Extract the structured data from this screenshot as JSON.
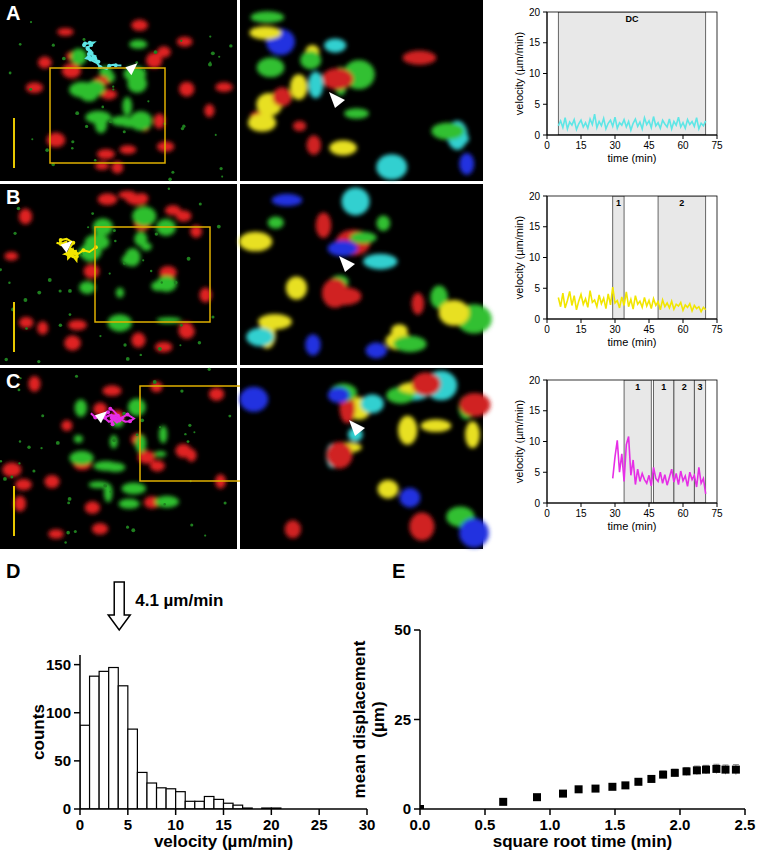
{
  "chart_data": [
    {
      "type": "line",
      "panel_label": "A",
      "xlabel": "time (min)",
      "ylabel": "velocity (µm/min)",
      "xlim": [
        0,
        75
      ],
      "ylim": [
        0,
        20
      ],
      "xticks": [
        0,
        15,
        30,
        45,
        60,
        75
      ],
      "yticks": [
        0,
        5,
        10,
        15,
        20
      ],
      "grid": false,
      "phases": [
        {
          "x0": 5,
          "x1": 70,
          "label": "DC"
        }
      ],
      "series": [
        {
          "color": "#5ee6e6",
          "x": [
            5,
            6,
            7,
            8,
            9,
            10,
            11,
            12,
            13,
            14,
            15,
            16,
            17,
            18,
            19,
            20,
            21,
            22,
            23,
            24,
            25,
            26,
            27,
            28,
            29,
            30,
            31,
            32,
            33,
            34,
            35,
            36,
            37,
            38,
            39,
            40,
            41,
            42,
            43,
            44,
            45,
            46,
            47,
            48,
            49,
            50,
            51,
            52,
            53,
            54,
            55,
            56,
            57,
            58,
            59,
            60,
            61,
            62,
            63,
            64,
            65,
            66,
            67,
            68,
            69,
            70
          ],
          "values": [
            1.5,
            2.3,
            1.2,
            2.8,
            1.0,
            2.1,
            1.6,
            2.5,
            0.9,
            1.8,
            2.4,
            1.3,
            2.0,
            1.1,
            2.6,
            1.7,
            3.4,
            1.2,
            2.2,
            1.5,
            2.7,
            1.0,
            1.9,
            2.4,
            1.4,
            2.9,
            1.1,
            2.0,
            1.6,
            2.5,
            1.3,
            2.2,
            0.8,
            1.9,
            2.6,
            1.4,
            2.1,
            1.0,
            2.8,
            1.7,
            2.3,
            1.2,
            3.0,
            1.5,
            2.0,
            1.1,
            2.4,
            1.8,
            1.3,
            2.6,
            1.0,
            2.2,
            1.6,
            2.9,
            1.3,
            2.0,
            1.1,
            2.5,
            1.7,
            2.2,
            1.4,
            2.8,
            1.0,
            1.9,
            1.5,
            2.3
          ]
        }
      ]
    },
    {
      "type": "line",
      "panel_label": "B",
      "xlabel": "time (min)",
      "ylabel": "velocity (µm/min)",
      "xlim": [
        0,
        75
      ],
      "ylim": [
        0,
        20
      ],
      "xticks": [
        0,
        15,
        30,
        45,
        60,
        75
      ],
      "yticks": [
        0,
        5,
        10,
        15,
        20
      ],
      "grid": false,
      "phases": [
        {
          "x0": 29,
          "x1": 34,
          "label": "1"
        },
        {
          "x0": 49,
          "x1": 70,
          "label": "2"
        }
      ],
      "series": [
        {
          "color": "#f2e600",
          "x": [
            5,
            6,
            7,
            8,
            9,
            10,
            11,
            12,
            13,
            14,
            15,
            16,
            17,
            18,
            19,
            20,
            21,
            22,
            23,
            24,
            25,
            26,
            27,
            28,
            29,
            30,
            31,
            32,
            33,
            34,
            35,
            36,
            37,
            38,
            39,
            40,
            41,
            42,
            43,
            44,
            45,
            46,
            47,
            48,
            49,
            50,
            51,
            52,
            53,
            54,
            55,
            56,
            57,
            58,
            59,
            60,
            61,
            62,
            63,
            64,
            65,
            66,
            67,
            68,
            69,
            70
          ],
          "values": [
            3.5,
            2.0,
            4.2,
            1.8,
            3.0,
            4.5,
            2.2,
            3.8,
            1.5,
            2.9,
            4.0,
            2.4,
            3.3,
            1.9,
            4.6,
            2.7,
            3.1,
            2.0,
            3.9,
            2.5,
            3.4,
            1.7,
            4.1,
            2.3,
            5.2,
            2.6,
            3.0,
            1.8,
            3.6,
            2.2,
            4.4,
            2.0,
            3.2,
            1.6,
            3.8,
            2.4,
            2.9,
            1.9,
            3.5,
            2.1,
            3.0,
            1.7,
            3.3,
            2.2,
            2.8,
            1.5,
            3.1,
            2.0,
            2.6,
            1.8,
            2.9,
            1.6,
            2.4,
            2.1,
            2.7,
            1.4,
            2.3,
            1.9,
            2.5,
            1.3,
            2.2,
            1.7,
            2.0,
            1.2,
            1.9,
            1.5
          ]
        }
      ]
    },
    {
      "type": "line",
      "panel_label": "C",
      "xlabel": "time (min)",
      "ylabel": "velocity (µm/min)",
      "xlim": [
        0,
        75
      ],
      "ylim": [
        0,
        20
      ],
      "xticks": [
        0,
        15,
        30,
        45,
        60,
        75
      ],
      "yticks": [
        0,
        5,
        10,
        15,
        20
      ],
      "grid": false,
      "phases": [
        {
          "x0": 34,
          "x1": 46,
          "label": "1"
        },
        {
          "x0": 47,
          "x1": 56,
          "label": "1"
        },
        {
          "x0": 56,
          "x1": 65,
          "label": "2"
        },
        {
          "x0": 65,
          "x1": 70,
          "label": "3"
        }
      ],
      "series": [
        {
          "color": "#e62ee6",
          "x": [
            29,
            30,
            31,
            32,
            33,
            34,
            35,
            36,
            37,
            38,
            39,
            40,
            41,
            42,
            43,
            44,
            45,
            46,
            47,
            48,
            49,
            50,
            51,
            52,
            53,
            54,
            55,
            56,
            57,
            58,
            59,
            60,
            61,
            62,
            63,
            64,
            65,
            66,
            67,
            68,
            69,
            70
          ],
          "values": [
            4.0,
            7.5,
            10.2,
            5.0,
            8.0,
            3.5,
            9.5,
            10.8,
            4.5,
            7.0,
            3.0,
            5.5,
            3.5,
            4.8,
            3.8,
            3.2,
            4.5,
            2.8,
            5.8,
            4.0,
            3.5,
            5.0,
            3.2,
            4.6,
            2.9,
            4.2,
            5.5,
            3.4,
            4.8,
            3.0,
            5.2,
            3.6,
            4.4,
            2.7,
            5.0,
            3.8,
            4.5,
            2.6,
            5.8,
            3.2,
            4.0,
            1.5
          ]
        }
      ]
    },
    {
      "type": "histogram",
      "panel_label": "D",
      "xlabel": "velocity (µm/min)",
      "ylabel": "counts",
      "xlim": [
        0,
        30
      ],
      "ylim": [
        0,
        160
      ],
      "xticks": [
        0,
        5,
        10,
        15,
        20,
        25,
        30
      ],
      "yticks": [
        0,
        50,
        100,
        150
      ],
      "grid": false,
      "color": "#ffffff",
      "bins": [
        0,
        1,
        2,
        3,
        4,
        5,
        6,
        7,
        8,
        9,
        10,
        11,
        12,
        13,
        14,
        15,
        16,
        17,
        18,
        19,
        20,
        21,
        22,
        23,
        24,
        25,
        26,
        27,
        28,
        29,
        30
      ],
      "values": [
        87,
        138,
        143,
        147,
        128,
        83,
        38,
        27,
        22,
        21,
        18,
        8,
        8,
        13,
        10,
        6,
        4,
        1,
        0,
        1,
        1,
        0,
        0,
        0,
        0,
        0,
        0,
        0,
        0,
        0
      ],
      "annotation": {
        "text": "4.1 µm/min",
        "x": 4.1
      }
    },
    {
      "type": "scatter",
      "panel_label": "E",
      "xlabel": "square root time (min)",
      "ylabel": [
        "mean displacement",
        "(µm)"
      ],
      "xlim": [
        0,
        2.5
      ],
      "ylim": [
        0,
        50
      ],
      "xticks": [
        {
          "value": 0,
          "label": "0.0"
        },
        {
          "value": 0.5,
          "label": "0.5"
        },
        {
          "value": 1,
          "label": "1.0"
        },
        {
          "value": 1.5,
          "label": "1.5"
        },
        {
          "value": 2,
          "label": "2.0"
        },
        {
          "value": 2.5,
          "label": "2.5"
        }
      ],
      "yticks": [
        0,
        25,
        50
      ],
      "grid": false,
      "marker": "square",
      "color": "#000000",
      "x": [
        0,
        0.64,
        0.9,
        1.1,
        1.22,
        1.35,
        1.48,
        1.58,
        1.68,
        1.78,
        1.87,
        1.96,
        2.05,
        2.13,
        2.2,
        2.28,
        2.35,
        2.43
      ],
      "values": [
        0,
        2,
        3.3,
        4.3,
        5.5,
        5.7,
        6.2,
        6.6,
        7.6,
        8.4,
        9.6,
        10.1,
        10.5,
        10.8,
        11.0,
        11.2,
        11.0,
        11.0
      ],
      "errors": [
        0,
        0.3,
        0.4,
        0.5,
        0.5,
        0.6,
        0.6,
        0.7,
        0.8,
        0.9,
        1.0,
        1.0,
        1.1,
        1.2,
        1.2,
        1.3,
        1.3,
        1.4
      ]
    }
  ]
}
